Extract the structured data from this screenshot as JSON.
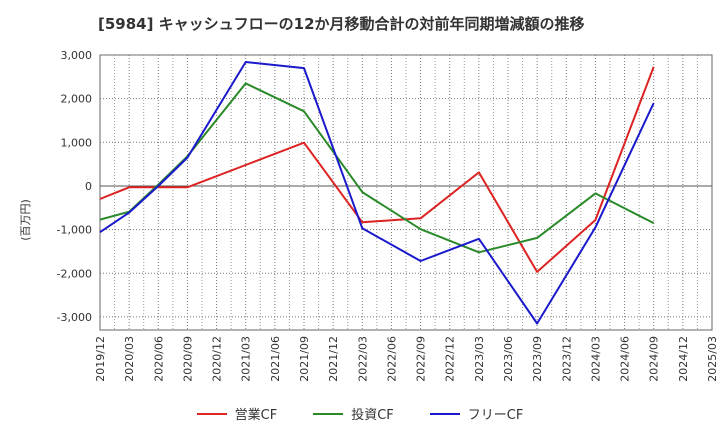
{
  "title": "[5984]  キャッシュフローの12か月移動合計の対前年同期増減額の推移",
  "chart_data": {
    "type": "line",
    "ylabel": "(百万円)",
    "ylim": [
      -3300,
      3000
    ],
    "yticks": [
      3000,
      2000,
      1000,
      0,
      -1000,
      -2000,
      -3000
    ],
    "ytick_labels": [
      "3,000",
      "2,000",
      "1,000",
      "0",
      "-1,000",
      "-2,000",
      "-3,000"
    ],
    "x_categories": [
      "2019/12",
      "2020/03",
      "2020/06",
      "2020/09",
      "2020/12",
      "2021/03",
      "2021/06",
      "2021/09",
      "2021/12",
      "2022/03",
      "2022/06",
      "2022/09",
      "2022/12",
      "2023/03",
      "2023/06",
      "2023/09",
      "2023/12",
      "2024/03",
      "2024/06",
      "2024/09",
      "2024/12",
      "2025/03"
    ],
    "grid": true,
    "legend_position": "bottom",
    "series": [
      {
        "name": "営業CF",
        "color": "#dd2222",
        "x": [
          "2019/12",
          "2020/03",
          "2020/06",
          "2020/09",
          "2021/03",
          "2021/09",
          "2022/03",
          "2022/09",
          "2023/03",
          "2023/09",
          "2024/03",
          "2024/09"
        ],
        "values": [
          -300,
          -30,
          -30,
          -30,
          480,
          990,
          -830,
          -740,
          310,
          -1970,
          -780,
          2730
        ]
      },
      {
        "name": "投資CF",
        "color": "#2a8a2a",
        "x": [
          "2019/12",
          "2020/03",
          "2020/06",
          "2020/09",
          "2021/03",
          "2021/09",
          "2022/03",
          "2022/09",
          "2023/03",
          "2023/09",
          "2024/03",
          "2024/09"
        ],
        "values": [
          -770,
          -590,
          30,
          680,
          2350,
          1710,
          -140,
          -990,
          -1520,
          -1190,
          -170,
          -850
        ]
      },
      {
        "name": "フリーCF",
        "color": "#1a1acc",
        "x": [
          "2019/12",
          "2020/03",
          "2020/06",
          "2020/09",
          "2021/03",
          "2021/09",
          "2022/03",
          "2022/09",
          "2023/03",
          "2023/09",
          "2024/03",
          "2024/09"
        ],
        "values": [
          -1060,
          -610,
          0,
          650,
          2840,
          2700,
          -970,
          -1720,
          -1210,
          -3150,
          -950,
          1900
        ]
      }
    ]
  }
}
